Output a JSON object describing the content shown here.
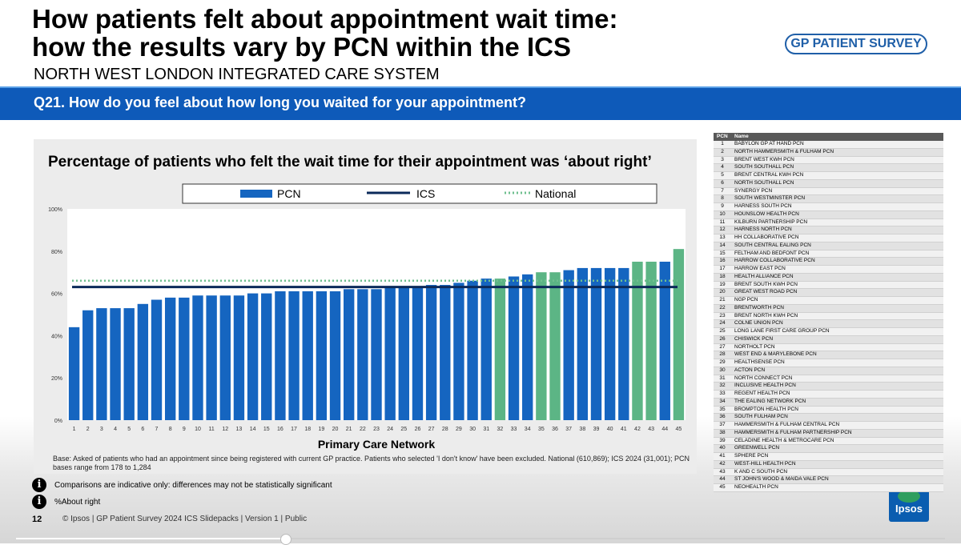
{
  "header": {
    "title_line1": "How patients felt about appointment wait time:",
    "title_line2": "how the results vary by PCN within the ICS",
    "subtitle": "NORTH WEST LONDON INTEGRATED CARE SYSTEM",
    "brand": "GP PATIENT SURVEY"
  },
  "question": "Q21. How do you feel about how long you waited for your appointment?",
  "colors": {
    "pcn_bar": "#1565c0",
    "pcn_bar_above": "#5cb585",
    "ics_line": "#0b2a5a",
    "national_line": "#6fbf8f",
    "question_bar": "#0e5ab9"
  },
  "chart_data": {
    "type": "bar",
    "title": "Percentage of patients who felt the wait time for their appointment was ‘about right’",
    "xlabel": "Primary Care Network",
    "ylabel": "",
    "ylim": [
      0,
      100
    ],
    "y_ticks": [
      "0%",
      "20%",
      "40%",
      "60%",
      "80%",
      "100%"
    ],
    "y_tick_values": [
      0,
      20,
      40,
      60,
      80,
      100
    ],
    "categories": [
      "1",
      "2",
      "3",
      "4",
      "5",
      "6",
      "7",
      "8",
      "9",
      "10",
      "11",
      "12",
      "13",
      "14",
      "15",
      "16",
      "17",
      "18",
      "19",
      "20",
      "21",
      "22",
      "23",
      "24",
      "25",
      "26",
      "27",
      "28",
      "29",
      "30",
      "31",
      "32",
      "33",
      "34",
      "35",
      "36",
      "37",
      "38",
      "39",
      "40",
      "41",
      "42",
      "43",
      "44",
      "45"
    ],
    "series": [
      {
        "name": "PCN",
        "values": [
          44,
          52,
          53,
          53,
          53,
          55,
          57,
          58,
          58,
          59,
          59,
          59,
          59,
          60,
          60,
          61,
          61,
          61,
          61,
          61,
          62,
          62,
          62,
          63,
          63,
          63,
          64,
          64,
          65,
          66,
          67,
          67,
          68,
          69,
          70,
          70,
          71,
          72,
          72,
          72,
          72,
          75,
          75,
          75,
          81
        ],
        "highlight": [
          false,
          false,
          false,
          false,
          false,
          false,
          false,
          false,
          false,
          false,
          false,
          false,
          false,
          false,
          false,
          false,
          false,
          false,
          false,
          false,
          false,
          false,
          false,
          false,
          false,
          false,
          false,
          false,
          false,
          false,
          false,
          true,
          false,
          false,
          true,
          true,
          false,
          false,
          false,
          false,
          false,
          true,
          true,
          false,
          true
        ]
      },
      {
        "name": "ICS",
        "value": 63
      },
      {
        "name": "National",
        "value": 66
      }
    ],
    "legend": [
      "PCN",
      "ICS",
      "National"
    ],
    "legend_position": "top",
    "grid": false
  },
  "base_note": "Base: Asked of patients who had an appointment since being registered with current GP practice. Patients who selected  'I don't know' have been excluded. National (610,869); ICS 2024 (31,001); PCN bases range from 178 to 1,284",
  "info_notes": [
    "Comparisons are indicative only: differences may not be statistically significant",
    "%About right"
  ],
  "footer": {
    "page_number": "12",
    "text": "© Ipsos | GP Patient Survey 2024 ICS Slidepacks | Version 1 | Public",
    "logo": "Ipsos"
  },
  "pcn_table": {
    "headers": [
      "PCN",
      "Name"
    ],
    "rows": [
      [
        "1",
        "BABYLON GP AT HAND PCN"
      ],
      [
        "2",
        "NORTH HAMMERSMITH & FULHAM PCN"
      ],
      [
        "3",
        "BRENT WEST KWH PCN"
      ],
      [
        "4",
        "SOUTH SOUTHALL PCN"
      ],
      [
        "5",
        "BRENT CENTRAL KWH PCN"
      ],
      [
        "6",
        "NORTH SOUTHALL PCN"
      ],
      [
        "7",
        "SYNERGY PCN"
      ],
      [
        "8",
        "SOUTH WESTMINSTER PCN"
      ],
      [
        "9",
        "HARNESS SOUTH PCN"
      ],
      [
        "10",
        "HOUNSLOW HEALTH PCN"
      ],
      [
        "11",
        "KILBURN PARTNERSHIP PCN"
      ],
      [
        "12",
        "HARNESS NORTH PCN"
      ],
      [
        "13",
        "HH COLLABORATIVE PCN"
      ],
      [
        "14",
        "SOUTH CENTRAL EALING PCN"
      ],
      [
        "15",
        "FELTHAM AND BEDFONT PCN"
      ],
      [
        "16",
        "HARROW COLLABORATIVE PCN"
      ],
      [
        "17",
        "HARROW EAST PCN"
      ],
      [
        "18",
        "HEALTH ALLIANCE PCN"
      ],
      [
        "19",
        "BRENT SOUTH KWH PCN"
      ],
      [
        "20",
        "GREAT WEST ROAD PCN"
      ],
      [
        "21",
        "NGP PCN"
      ],
      [
        "22",
        "BRENTWORTH PCN"
      ],
      [
        "23",
        "BRENT NORTH KWH PCN"
      ],
      [
        "24",
        "COLNE UNION PCN"
      ],
      [
        "25",
        "LONG LANE FIRST CARE GROUP PCN"
      ],
      [
        "26",
        "CHISWICK PCN"
      ],
      [
        "27",
        "NORTHOLT PCN"
      ],
      [
        "28",
        "WEST END & MARYLEBONE PCN"
      ],
      [
        "29",
        "HEALTHSENSE PCN"
      ],
      [
        "30",
        "ACTON PCN"
      ],
      [
        "31",
        "NORTH CONNECT PCN"
      ],
      [
        "32",
        "INCLUSIVE HEALTH PCN"
      ],
      [
        "33",
        "REGENT HEALTH PCN"
      ],
      [
        "34",
        "THE EALING NETWORK PCN"
      ],
      [
        "35",
        "BROMPTON HEALTH PCN"
      ],
      [
        "36",
        "SOUTH FULHAM PCN"
      ],
      [
        "37",
        "HAMMERSMITH & FULHAM CENTRAL PCN"
      ],
      [
        "38",
        "HAMMERSMITH & FULHAM PARTNERSHIP PCN"
      ],
      [
        "39",
        "CELADINE HEALTH & METROCARE PCN"
      ],
      [
        "40",
        "GREENWELL PCN"
      ],
      [
        "41",
        "SPHERE PCN"
      ],
      [
        "42",
        "WEST-HILL HEALTH PCN"
      ],
      [
        "43",
        "K AND C SOUTH PCN"
      ],
      [
        "44",
        "ST JOHN'S WOOD & MAIDA VALE PCN"
      ],
      [
        "45",
        "NEOHEALTH PCN"
      ]
    ]
  },
  "video_progress": 0.29
}
